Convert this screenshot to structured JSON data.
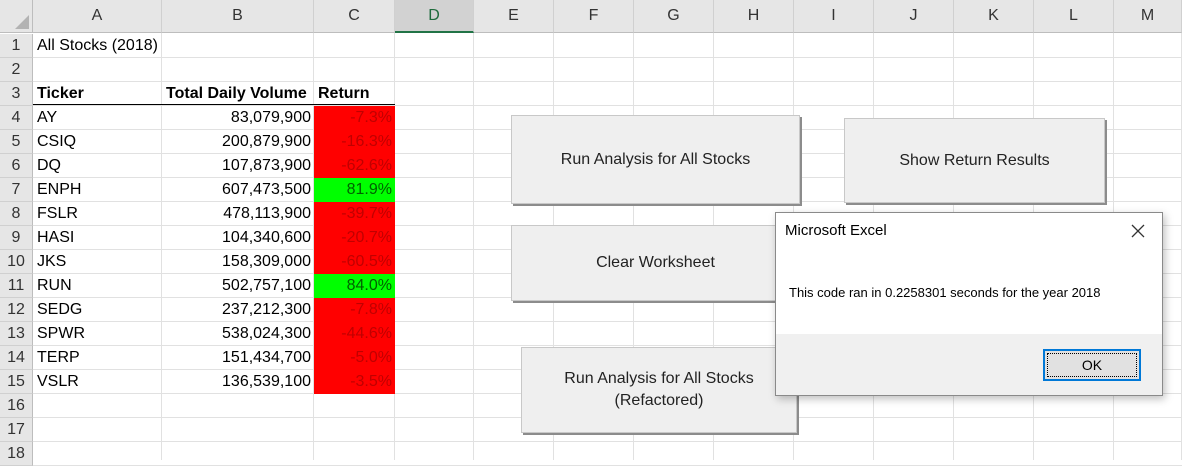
{
  "spreadsheet": {
    "columns": [
      "A",
      "B",
      "C",
      "D",
      "E",
      "F",
      "G",
      "H",
      "I",
      "J",
      "K",
      "L",
      "M"
    ],
    "selected_column": "D",
    "rows": [
      "1",
      "2",
      "3",
      "4",
      "5",
      "6",
      "7",
      "8",
      "9",
      "10",
      "11",
      "12",
      "13",
      "14",
      "15",
      "16",
      "17",
      "18"
    ],
    "title_cell": "All Stocks (2018)",
    "headers": {
      "ticker": "Ticker",
      "volume": "Total Daily Volume",
      "return": "Return"
    },
    "data": [
      {
        "ticker": "AY",
        "volume": "83,079,900",
        "return": "-7.3%",
        "status": "negative"
      },
      {
        "ticker": "CSIQ",
        "volume": "200,879,900",
        "return": "-16.3%",
        "status": "negative"
      },
      {
        "ticker": "DQ",
        "volume": "107,873,900",
        "return": "-62.6%",
        "status": "negative"
      },
      {
        "ticker": "ENPH",
        "volume": "607,473,500",
        "return": "81.9%",
        "status": "positive"
      },
      {
        "ticker": "FSLR",
        "volume": "478,113,900",
        "return": "-39.7%",
        "status": "negative"
      },
      {
        "ticker": "HASI",
        "volume": "104,340,600",
        "return": "-20.7%",
        "status": "negative"
      },
      {
        "ticker": "JKS",
        "volume": "158,309,000",
        "return": "-60.5%",
        "status": "negative"
      },
      {
        "ticker": "RUN",
        "volume": "502,757,100",
        "return": "84.0%",
        "status": "positive"
      },
      {
        "ticker": "SEDG",
        "volume": "237,212,300",
        "return": "-7.8%",
        "status": "negative"
      },
      {
        "ticker": "SPWR",
        "volume": "538,024,300",
        "return": "-44.6%",
        "status": "negative"
      },
      {
        "ticker": "TERP",
        "volume": "151,434,700",
        "return": "-5.0%",
        "status": "negative"
      },
      {
        "ticker": "VSLR",
        "volume": "136,539,100",
        "return": "-3.5%",
        "status": "negative"
      }
    ]
  },
  "buttons": {
    "run_all": "Run Analysis for All Stocks",
    "show_results": "Show Return Results",
    "clear": "Clear Worksheet",
    "run_refactored_line1": "Run Analysis for All Stocks",
    "run_refactored_line2": "(Refactored)"
  },
  "dialog": {
    "title": "Microsoft Excel",
    "message": "This code ran in 0.2258301 seconds for the year 2018",
    "ok_label": "OK",
    "close_icon": "close-icon"
  },
  "colors": {
    "negative_fill": "#ff0000",
    "positive_fill": "#00ff00",
    "selected_header_accent": "#217346",
    "dialog_focus": "#0078d7"
  }
}
